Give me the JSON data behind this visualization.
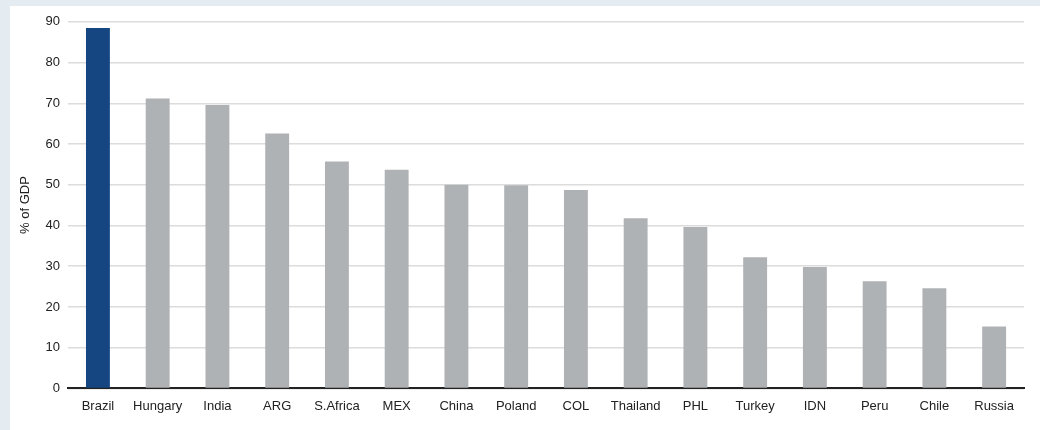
{
  "chart_data": {
    "type": "bar",
    "ylabel": "% of GDP",
    "categories": [
      "Brazil",
      "Hungary",
      "India",
      "ARG",
      "S.Africa",
      "MEX",
      "China",
      "Poland",
      "COL",
      "Thailand",
      "PHL",
      "Turkey",
      "IDN",
      "Peru",
      "Chile",
      "Russia"
    ],
    "values": [
      88.5,
      71.2,
      69.6,
      62.6,
      55.7,
      53.7,
      50.0,
      49.9,
      48.7,
      41.8,
      39.6,
      32.2,
      29.8,
      26.3,
      24.6,
      15.2
    ],
    "colors": [
      "#154681",
      "#afb2b5",
      "#afb2b5",
      "#afb2b5",
      "#afb2b5",
      "#afb2b5",
      "#afb2b5",
      "#afb2b5",
      "#afb2b5",
      "#afb2b5",
      "#afb2b5",
      "#afb2b5",
      "#afb2b5",
      "#afb2b5",
      "#afb2b5",
      "#afb2b5"
    ],
    "ylim": [
      0,
      90
    ],
    "yticks": [
      0,
      10,
      20,
      30,
      40,
      50,
      60,
      70,
      80,
      90
    ],
    "grid": "y",
    "legend": false
  }
}
